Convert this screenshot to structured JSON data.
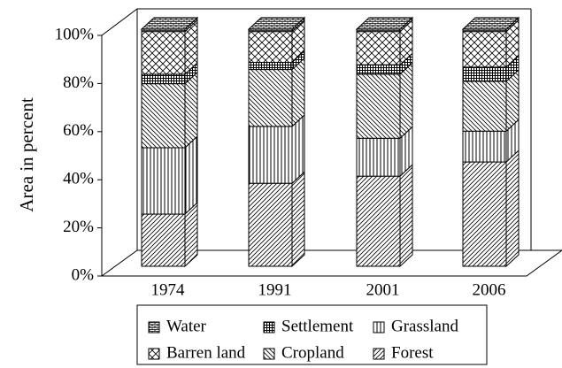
{
  "chart_data": {
    "type": "bar3d-stacked",
    "y_label": "Area in percent",
    "categories": [
      "1974",
      "1991",
      "2001",
      "2006"
    ],
    "series": [
      {
        "name": "Forest",
        "pattern": "slash",
        "values": [
          22,
          35,
          38,
          44
        ]
      },
      {
        "name": "Grassland",
        "pattern": "vertical",
        "values": [
          28,
          24,
          16,
          13
        ]
      },
      {
        "name": "Cropland",
        "pattern": "backslash",
        "values": [
          27,
          24,
          27,
          21
        ]
      },
      {
        "name": "Settlement",
        "pattern": "grid",
        "values": [
          4,
          3,
          4,
          6
        ]
      },
      {
        "name": "Barren land",
        "pattern": "crosshatch",
        "values": [
          18,
          13,
          14,
          15
        ]
      },
      {
        "name": "Water",
        "pattern": "brick",
        "values": [
          1,
          1,
          1,
          1
        ]
      }
    ],
    "ylim": [
      0,
      100
    ],
    "yticks": [
      {
        "value": 0,
        "label": "0%"
      },
      {
        "value": 20,
        "label": "20%"
      },
      {
        "value": 40,
        "label": "40%"
      },
      {
        "value": 60,
        "label": "60%"
      },
      {
        "value": 80,
        "label": "80%"
      },
      {
        "value": 100,
        "label": "100%"
      }
    ]
  }
}
